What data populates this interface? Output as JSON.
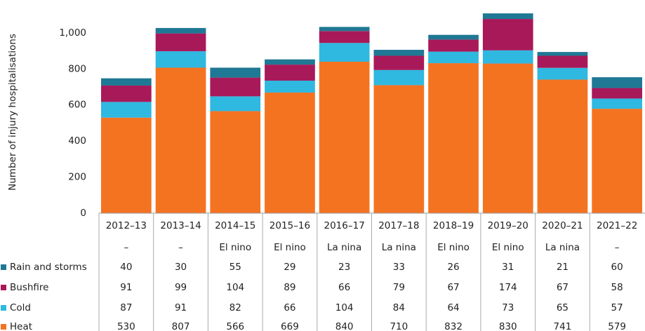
{
  "chart_data": {
    "type": "stacked-bar",
    "y_label": "Number of injury hospitalisations",
    "categories": [
      "2012–13",
      "2013–14",
      "2014–15",
      "2015–16",
      "2016–17",
      "2017–18",
      "2018–19",
      "2019–20",
      "2020–21",
      "2021–22"
    ],
    "phase": [
      "–",
      "–",
      "El nino",
      "El nino",
      "La nina",
      "La nina",
      "El nino",
      "El nino",
      "La nina",
      "–"
    ],
    "series": [
      {
        "name": "Heat",
        "color": "#f47321",
        "values": [
          530,
          807,
          566,
          669,
          840,
          710,
          832,
          830,
          741,
          579
        ]
      },
      {
        "name": "Cold",
        "color": "#2fb8e0",
        "values": [
          87,
          91,
          82,
          66,
          104,
          84,
          64,
          73,
          65,
          57
        ]
      },
      {
        "name": "Bushfire",
        "color": "#a8195a",
        "values": [
          91,
          99,
          104,
          89,
          66,
          79,
          67,
          174,
          67,
          58
        ]
      },
      {
        "name": "Rain and storms",
        "color": "#1f7894",
        "values": [
          40,
          30,
          55,
          29,
          23,
          33,
          26,
          31,
          21,
          60
        ]
      }
    ],
    "ylim": [
      0,
      1120
    ],
    "yticks": [
      0,
      200,
      400,
      600,
      800,
      {
        "value": 1000,
        "label": "1,000"
      }
    ]
  }
}
